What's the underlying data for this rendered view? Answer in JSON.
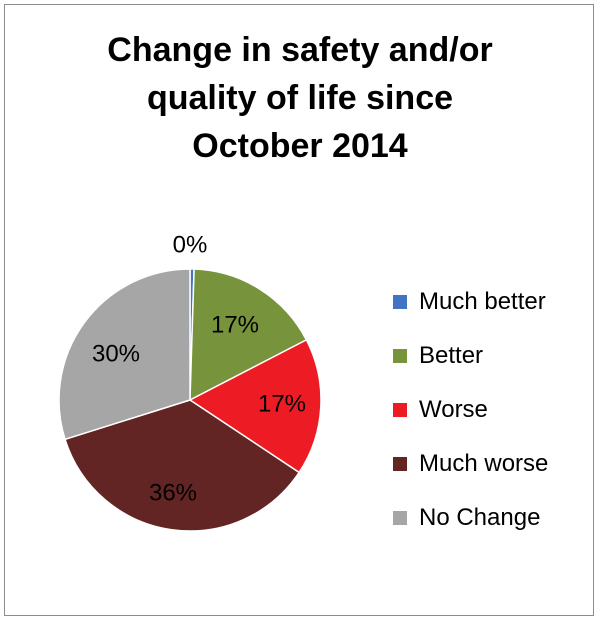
{
  "chart_data": {
    "type": "pie",
    "title_lines": [
      "Change in safety and/or",
      "quality of life since",
      "October 2014"
    ],
    "slices": [
      {
        "name": "Much better",
        "value": 0.5,
        "label": "0%",
        "color": "#4472c4"
      },
      {
        "name": "Better",
        "value": 17,
        "label": "17%",
        "color": "#77933c"
      },
      {
        "name": "Worse",
        "value": 17,
        "label": "17%",
        "color": "#ed1c24"
      },
      {
        "name": "Much worse",
        "value": 36,
        "label": "36%",
        "color": "#632523"
      },
      {
        "name": "No Change",
        "value": 30,
        "label": "30%",
        "color": "#a6a6a6"
      }
    ],
    "legend_position": "right"
  }
}
